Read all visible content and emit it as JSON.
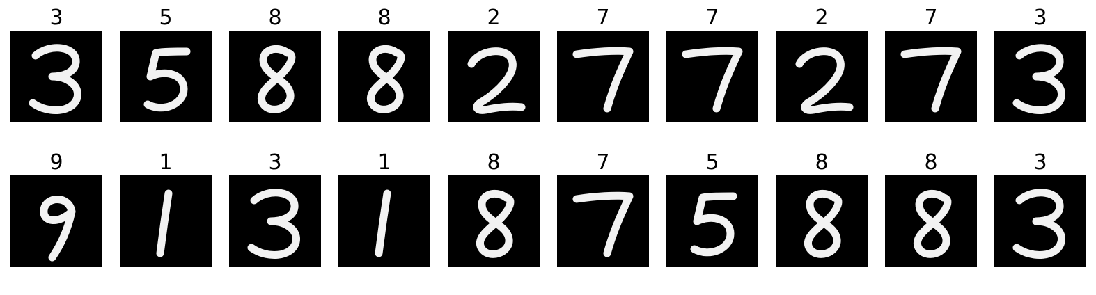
{
  "rows": [
    {
      "cells": [
        {
          "label": "3",
          "glyph": "digit-3"
        },
        {
          "label": "5",
          "glyph": "digit-5"
        },
        {
          "label": "8",
          "glyph": "digit-8"
        },
        {
          "label": "8",
          "glyph": "digit-8"
        },
        {
          "label": "2",
          "glyph": "digit-2"
        },
        {
          "label": "7",
          "glyph": "digit-7"
        },
        {
          "label": "7",
          "glyph": "digit-7"
        },
        {
          "label": "2",
          "glyph": "digit-2"
        },
        {
          "label": "7",
          "glyph": "digit-7"
        },
        {
          "label": "3",
          "glyph": "digit-3"
        }
      ]
    },
    {
      "cells": [
        {
          "label": "9",
          "glyph": "digit-9"
        },
        {
          "label": "1",
          "glyph": "digit-1"
        },
        {
          "label": "3",
          "glyph": "digit-3"
        },
        {
          "label": "1",
          "glyph": "digit-1"
        },
        {
          "label": "8",
          "glyph": "digit-8"
        },
        {
          "label": "7",
          "glyph": "digit-7"
        },
        {
          "label": "5",
          "glyph": "digit-5"
        },
        {
          "label": "8",
          "glyph": "digit-8"
        },
        {
          "label": "8",
          "glyph": "digit-8"
        },
        {
          "label": "3",
          "glyph": "digit-3"
        }
      ]
    }
  ],
  "colors": {
    "background": "#ffffff",
    "image_background": "#000000",
    "stroke": "#f2f2f2",
    "title": "#000000"
  }
}
